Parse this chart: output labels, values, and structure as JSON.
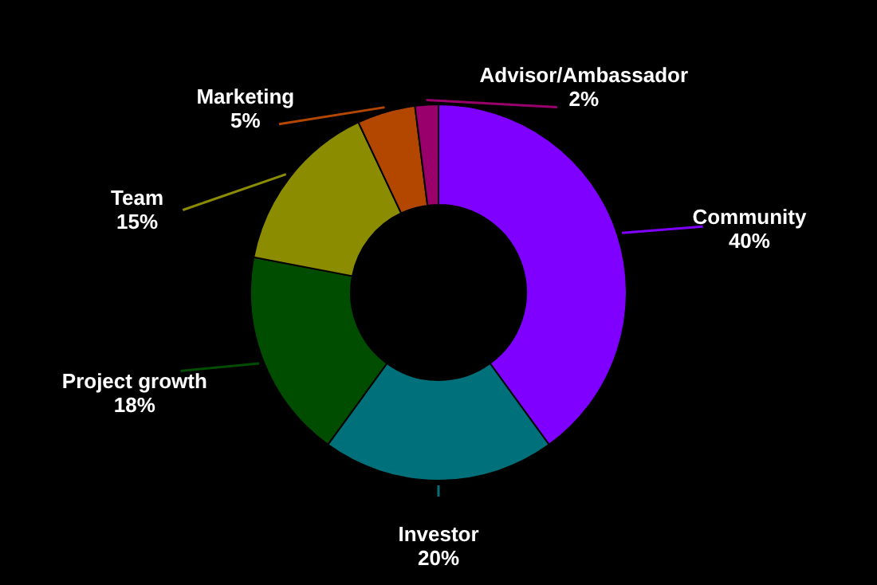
{
  "chart_data": {
    "type": "donut",
    "categories": [
      "Community",
      "Investor",
      "Project growth",
      "Team",
      "Marketing",
      "Advisor/Ambassador"
    ],
    "values": [
      40,
      20,
      18,
      15,
      5,
      2
    ],
    "value_labels": [
      "40%",
      "20%",
      "18%",
      "15%",
      "5%",
      "2%"
    ],
    "colors": [
      "#8000ff",
      "#00707a",
      "#004d00",
      "#8c8c00",
      "#b34700",
      "#99006b"
    ],
    "legend": false
  }
}
